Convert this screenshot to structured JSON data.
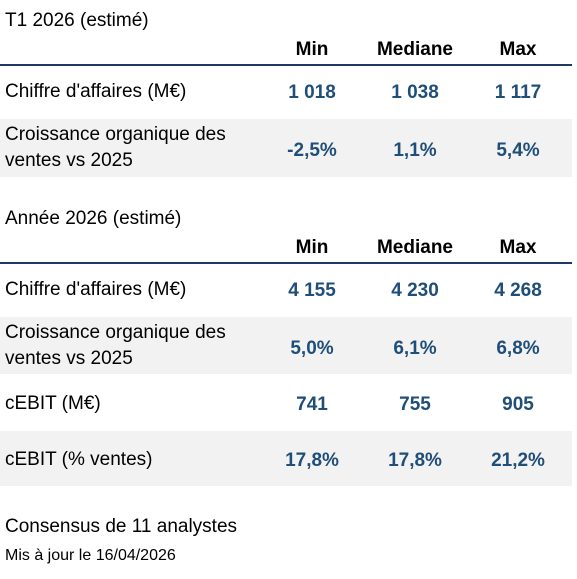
{
  "colors": {
    "value_text": "#1f4e79",
    "rule": "#1f3864",
    "row_shade": "#f2f2f2"
  },
  "sections": [
    {
      "title": "T1 2026 (estimé)",
      "columns": [
        "Min",
        "Mediane",
        "Max"
      ],
      "rows": [
        {
          "label": "Chiffre d'affaires (M€)",
          "values": [
            "1 018",
            "1 038",
            "1 117"
          ]
        },
        {
          "label": "Croissance organique des ventes vs 2025",
          "values": [
            "-2,5%",
            "1,1%",
            "5,4%"
          ]
        }
      ]
    },
    {
      "title": "Année 2026 (estimé)",
      "columns": [
        "Min",
        "Mediane",
        "Max"
      ],
      "rows": [
        {
          "label": "Chiffre d'affaires (M€)",
          "values": [
            "4 155",
            "4 230",
            "4 268"
          ]
        },
        {
          "label": "Croissance organique des ventes vs 2025",
          "values": [
            "5,0%",
            "6,1%",
            "6,8%"
          ]
        },
        {
          "label": "cEBIT (M€)",
          "values": [
            "741",
            "755",
            "905"
          ]
        },
        {
          "label": "cEBIT (% ventes)",
          "values": [
            "17,8%",
            "17,8%",
            "21,2%"
          ]
        }
      ]
    }
  ],
  "footer": {
    "consensus": "Consensus de 11 analystes",
    "updated": "Mis à jour le 16/04/2026"
  }
}
